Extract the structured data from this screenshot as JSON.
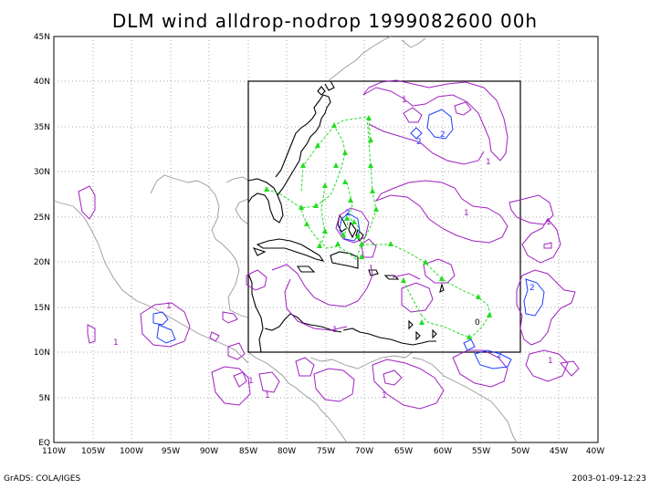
{
  "title": "DLM wind alldrop-nodrop 1999082600 00h",
  "footer_left": "GrADS: COLA/IGES",
  "footer_right": "2003-01-09-12:23",
  "lat_labels": [
    "EQ",
    "5N",
    "10N",
    "15N",
    "20N",
    "25N",
    "30N",
    "35N",
    "40N",
    "45N"
  ],
  "lon_labels": [
    "110W",
    "105W",
    "100W",
    "95W",
    "90W",
    "85W",
    "80W",
    "75W",
    "70W",
    "65W",
    "60W",
    "55W",
    "50W",
    "45W",
    "40W"
  ],
  "contour_labels": [
    {
      "text": "1",
      "color": "purple"
    },
    {
      "text": "2",
      "color": "blue"
    },
    {
      "text": "2",
      "color": "blue"
    },
    {
      "text": "1",
      "color": "purple"
    },
    {
      "text": "1",
      "color": "purple"
    },
    {
      "text": "1",
      "color": "purple"
    },
    {
      "text": "2",
      "color": "blue"
    },
    {
      "text": "1",
      "color": "purple"
    },
    {
      "text": "1",
      "color": "purple"
    },
    {
      "text": "1",
      "color": "purple"
    },
    {
      "text": "1",
      "color": "purple"
    },
    {
      "text": "2",
      "color": "blue"
    },
    {
      "text": "1",
      "color": "purple"
    },
    {
      "text": "1",
      "color": "purple"
    },
    {
      "text": "1",
      "color": "purple"
    },
    {
      "text": "2",
      "color": "blue"
    },
    {
      "text": "0",
      "color": "black"
    }
  ],
  "colors": {
    "contour_1": "#a020c0",
    "contour_2": "#1e3cff",
    "track": "#22dd22",
    "coast": "#999999",
    "coast_inner": "#000000",
    "grid": "#888888"
  }
}
